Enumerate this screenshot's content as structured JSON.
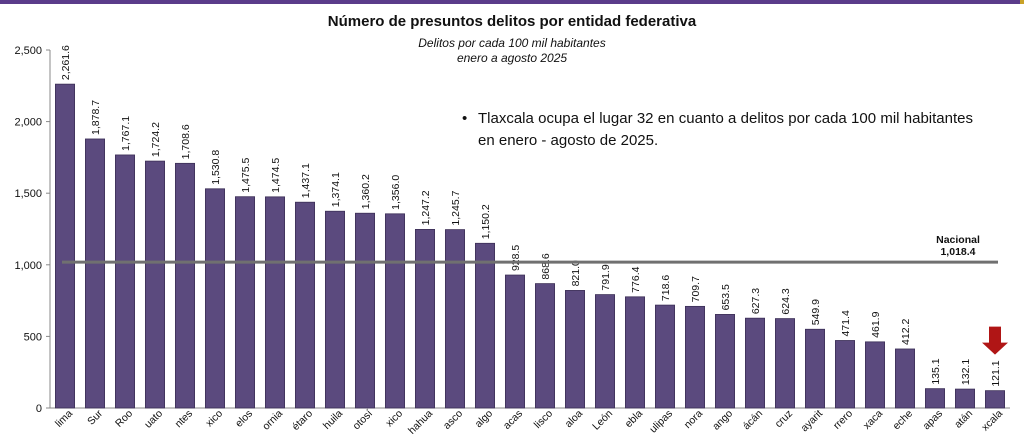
{
  "colors": {
    "bar": "#5b4a7e",
    "bar_edge": "#3c2f57",
    "national_line": "#707070",
    "topbar": "#5b3c8a",
    "topbar_accent": "#c9a227",
    "arrow": "#b01515"
  },
  "highlight_icon": "red-down-arrow-icon",
  "note": {
    "text": "Tlaxcala ocupa el lugar 32 en cuanto a delitos por cada 100 mil habitantes en enero - agosto de 2025."
  },
  "chart_data": {
    "type": "bar",
    "title": "Número de presuntos delitos por entidad federativa",
    "subtitle": "Delitos por cada 100 mil habitantes",
    "subtitle2": "enero a agosto 2025",
    "categories": [
      "lima",
      "Sur",
      "Roo",
      "uato",
      "ntes",
      "xico",
      "elos",
      "ornia",
      "étaro",
      "huila",
      "otosí",
      "xico",
      "hahua",
      "asco",
      "algo",
      "acas",
      "lisco",
      "aloa",
      "León",
      "ebla",
      "ulipas",
      "nora",
      "ango",
      "ácán",
      "cruz",
      "ayarit",
      "rrero",
      "xaca",
      "eche",
      "apas",
      "atán",
      "xcala"
    ],
    "values": [
      2261.6,
      1878.7,
      1767.1,
      1724.2,
      1708.6,
      1530.8,
      1475.5,
      1474.5,
      1437.1,
      1374.1,
      1360.2,
      1356.0,
      1247.2,
      1245.7,
      1150.2,
      928.5,
      868.6,
      821.0,
      791.9,
      776.4,
      718.6,
      709.7,
      653.5,
      627.3,
      624.3,
      549.9,
      471.4,
      461.9,
      412.2,
      135.1,
      132.1,
      121.1
    ],
    "value_labels": [
      "2,261.6",
      "1,878.7",
      "1,767.1",
      "1,724.2",
      "1,708.6",
      "1,530.8",
      "1,475.5",
      "1,474.5",
      "1,437.1",
      "1,374.1",
      "1,360.2",
      "1,356.0",
      "1,247.2",
      "1,245.7",
      "1,150.2",
      "928.5",
      "868.6",
      "821.0",
      "791.9",
      "776.4",
      "718.6",
      "709.7",
      "653.5",
      "627.3",
      "624.3",
      "549.9",
      "471.4",
      "461.9",
      "412.2",
      "135.1",
      "132.1",
      "121.1"
    ],
    "yticks": [
      0,
      500,
      1000,
      1500,
      2000,
      2500
    ],
    "ytick_labels": [
      "0",
      "500",
      "1,000",
      "1,500",
      "2,000",
      "2,500"
    ],
    "ylim": [
      0,
      2500
    ],
    "reference_line": {
      "value": 1018.4,
      "label": "Nacional",
      "value_label": "1,018.4"
    },
    "highlight_index": 31,
    "grid": false,
    "legend": "none"
  }
}
